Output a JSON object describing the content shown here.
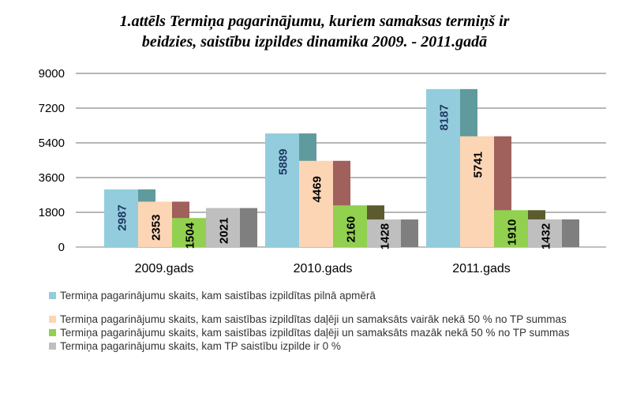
{
  "chart_data": {
    "type": "bar",
    "title_line1": "1.attēls  Termiņa pagarinājumu, kuriem samaksas termiņš ir",
    "title_line2": "beidzies, saistību izpildes dinamika 2009. - 2011.gadā",
    "categories": [
      "2009.gads",
      "2010.gads",
      "2011.gads"
    ],
    "y_ticks": [
      "0",
      "1800",
      "3600",
      "5400",
      "7200",
      "9000"
    ],
    "ylim": [
      0,
      9000
    ],
    "grid": true,
    "legend_position": "bottom",
    "series": [
      {
        "name": "Termiņa pagarinājumu skaits, kam  saistības izpildītas pilnā apmērā",
        "values": [
          2987,
          5889,
          8187
        ],
        "labels": [
          "2987",
          "5889",
          "8187"
        ],
        "color": "#93cddd",
        "side_color": "#5f9a9c",
        "label_color": "#1f3864"
      },
      {
        "name": "Termiņa pagarinājumu skaits, kam saistības izpildītas daļēji un samaksāts vairāk nekā 50 % no TP summas",
        "values": [
          2353,
          4469,
          5741
        ],
        "labels": [
          "2353",
          "4469",
          "5741"
        ],
        "color": "#fcd5b5",
        "side_color": "#a0605c",
        "label_color": "#000000"
      },
      {
        "name": "Termiņa pagarinājumu skaits, kam saistības izpildītas daļēji un samaksāts mazāk nekā 50 % no TP summas",
        "values": [
          1504,
          2160,
          1910
        ],
        "labels": [
          "1504",
          "2160",
          "1910"
        ],
        "color": "#92d050",
        "side_color": "#5c5b2e",
        "label_color": "#000000"
      },
      {
        "name": "Termiņa pagarinājumu skaits, kam TP saistību  izpilde ir 0 %",
        "values": [
          2021,
          1428,
          1432
        ],
        "labels": [
          "2021",
          "1428",
          "1432"
        ],
        "color": "#bfbfbf",
        "side_color": "#7f7f7f",
        "label_color": "#000000"
      }
    ]
  }
}
